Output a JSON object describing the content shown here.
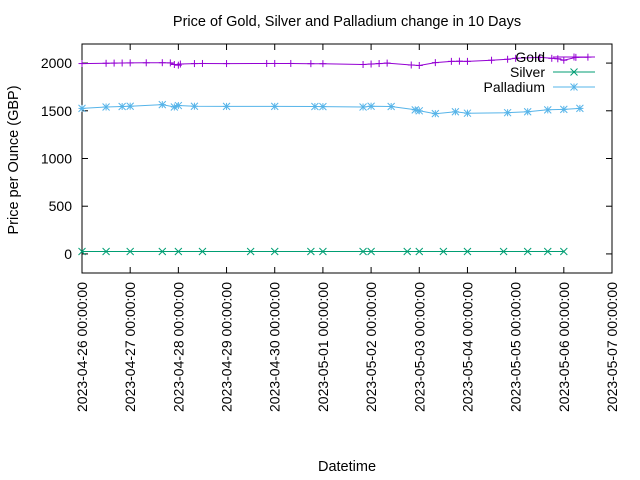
{
  "chart_data": {
    "type": "line",
    "title": "Price of Gold, Silver and Palladium change in 10 Days",
    "xlabel": "Datetime",
    "ylabel": "Price per Ounce (GBP)",
    "xlim": [
      "2023-04-26 00:00:00",
      "2023-05-07 00:00:00"
    ],
    "ylim": [
      -200,
      2200
    ],
    "x_ticks": [
      "2023-04-26 00:00:00",
      "2023-04-27 00:00:00",
      "2023-04-28 00:00:00",
      "2023-04-29 00:00:00",
      "2023-04-30 00:00:00",
      "2023-05-01 00:00:00",
      "2023-05-02 00:00:00",
      "2023-05-03 00:00:00",
      "2023-05-04 00:00:00",
      "2023-05-05 00:00:00",
      "2023-05-06 00:00:00",
      "2023-05-07 00:00:00"
    ],
    "y_ticks": [
      0,
      500,
      1000,
      1500,
      2000
    ],
    "grid": false,
    "legend": "top-right",
    "series": [
      {
        "name": "Gold",
        "color": "#9400d3",
        "marker": "plus",
        "points": [
          [
            "2023-04-26 00:00:00",
            1995
          ],
          [
            "2023-04-26 12:00:00",
            1998
          ],
          [
            "2023-04-26 16:00:00",
            2000
          ],
          [
            "2023-04-26 20:00:00",
            2001
          ],
          [
            "2023-04-27 00:00:00",
            2002
          ],
          [
            "2023-04-27 08:00:00",
            2003
          ],
          [
            "2023-04-27 16:00:00",
            2004
          ],
          [
            "2023-04-27 20:00:00",
            2002
          ],
          [
            "2023-04-27 22:00:00",
            1985
          ],
          [
            "2023-04-28 00:00:00",
            1978
          ],
          [
            "2023-04-28 01:00:00",
            1990
          ],
          [
            "2023-04-28 08:00:00",
            1995
          ],
          [
            "2023-04-28 12:00:00",
            1996
          ],
          [
            "2023-04-29 00:00:00",
            1995
          ],
          [
            "2023-04-29 20:00:00",
            1996
          ],
          [
            "2023-04-30 00:00:00",
            1996
          ],
          [
            "2023-04-30 08:00:00",
            1996
          ],
          [
            "2023-04-30 18:00:00",
            1994
          ],
          [
            "2023-05-01 00:00:00",
            1994
          ],
          [
            "2023-05-01 20:00:00",
            1985
          ],
          [
            "2023-05-02 00:00:00",
            1990
          ],
          [
            "2023-05-02 04:00:00",
            1995
          ],
          [
            "2023-05-02 08:00:00",
            2000
          ],
          [
            "2023-05-02 20:00:00",
            1980
          ],
          [
            "2023-05-03 00:00:00",
            1975
          ],
          [
            "2023-05-03 08:00:00",
            2005
          ],
          [
            "2023-05-03 16:00:00",
            2018
          ],
          [
            "2023-05-03 20:00:00",
            2020
          ],
          [
            "2023-05-04 00:00:00",
            2018
          ],
          [
            "2023-05-04 12:00:00",
            2030
          ],
          [
            "2023-05-04 20:00:00",
            2040
          ],
          [
            "2023-05-05 00:00:00",
            2050
          ],
          [
            "2023-05-05 12:00:00",
            2060
          ],
          [
            "2023-05-05 18:00:00",
            2050
          ],
          [
            "2023-05-05 21:00:00",
            2045
          ],
          [
            "2023-05-06 00:00:00",
            2030
          ],
          [
            "2023-05-06 06:00:00",
            2060
          ],
          [
            "2023-05-06 12:00:00",
            2062
          ]
        ]
      },
      {
        "name": "Silver",
        "color": "#009e73",
        "marker": "cross",
        "points": [
          [
            "2023-04-26 00:00:00",
            25
          ],
          [
            "2023-04-26 12:00:00",
            25
          ],
          [
            "2023-04-27 00:00:00",
            25
          ],
          [
            "2023-04-27 16:00:00",
            25
          ],
          [
            "2023-04-28 00:00:00",
            25
          ],
          [
            "2023-04-28 12:00:00",
            25
          ],
          [
            "2023-04-29 12:00:00",
            25
          ],
          [
            "2023-04-30 00:00:00",
            25
          ],
          [
            "2023-04-30 18:00:00",
            25
          ],
          [
            "2023-05-01 00:00:00",
            25
          ],
          [
            "2023-05-01 20:00:00",
            25
          ],
          [
            "2023-05-02 00:00:00",
            25
          ],
          [
            "2023-05-02 18:00:00",
            25
          ],
          [
            "2023-05-03 00:00:00",
            25
          ],
          [
            "2023-05-03 12:00:00",
            25
          ],
          [
            "2023-05-04 00:00:00",
            25
          ],
          [
            "2023-05-04 18:00:00",
            25
          ],
          [
            "2023-05-05 06:00:00",
            25
          ],
          [
            "2023-05-05 16:00:00",
            25
          ],
          [
            "2023-05-06 00:00:00",
            25
          ]
        ]
      },
      {
        "name": "Palladium",
        "color": "#56b4e9",
        "marker": "star",
        "points": [
          [
            "2023-04-26 00:00:00",
            1525
          ],
          [
            "2023-04-26 12:00:00",
            1540
          ],
          [
            "2023-04-26 20:00:00",
            1545
          ],
          [
            "2023-04-27 00:00:00",
            1548
          ],
          [
            "2023-04-27 16:00:00",
            1565
          ],
          [
            "2023-04-27 22:00:00",
            1540
          ],
          [
            "2023-04-28 00:00:00",
            1555
          ],
          [
            "2023-04-28 08:00:00",
            1548
          ],
          [
            "2023-04-29 00:00:00",
            1546
          ],
          [
            "2023-04-30 00:00:00",
            1546
          ],
          [
            "2023-04-30 20:00:00",
            1545
          ],
          [
            "2023-05-01 00:00:00",
            1544
          ],
          [
            "2023-05-01 20:00:00",
            1540
          ],
          [
            "2023-05-02 00:00:00",
            1548
          ],
          [
            "2023-05-02 10:00:00",
            1545
          ],
          [
            "2023-05-02 22:00:00",
            1510
          ],
          [
            "2023-05-03 00:00:00",
            1500
          ],
          [
            "2023-05-03 08:00:00",
            1470
          ],
          [
            "2023-05-03 18:00:00",
            1490
          ],
          [
            "2023-05-04 00:00:00",
            1475
          ],
          [
            "2023-05-04 20:00:00",
            1480
          ],
          [
            "2023-05-05 06:00:00",
            1490
          ],
          [
            "2023-05-05 16:00:00",
            1510
          ],
          [
            "2023-05-06 00:00:00",
            1515
          ],
          [
            "2023-05-06 08:00:00",
            1525
          ]
        ]
      }
    ]
  }
}
